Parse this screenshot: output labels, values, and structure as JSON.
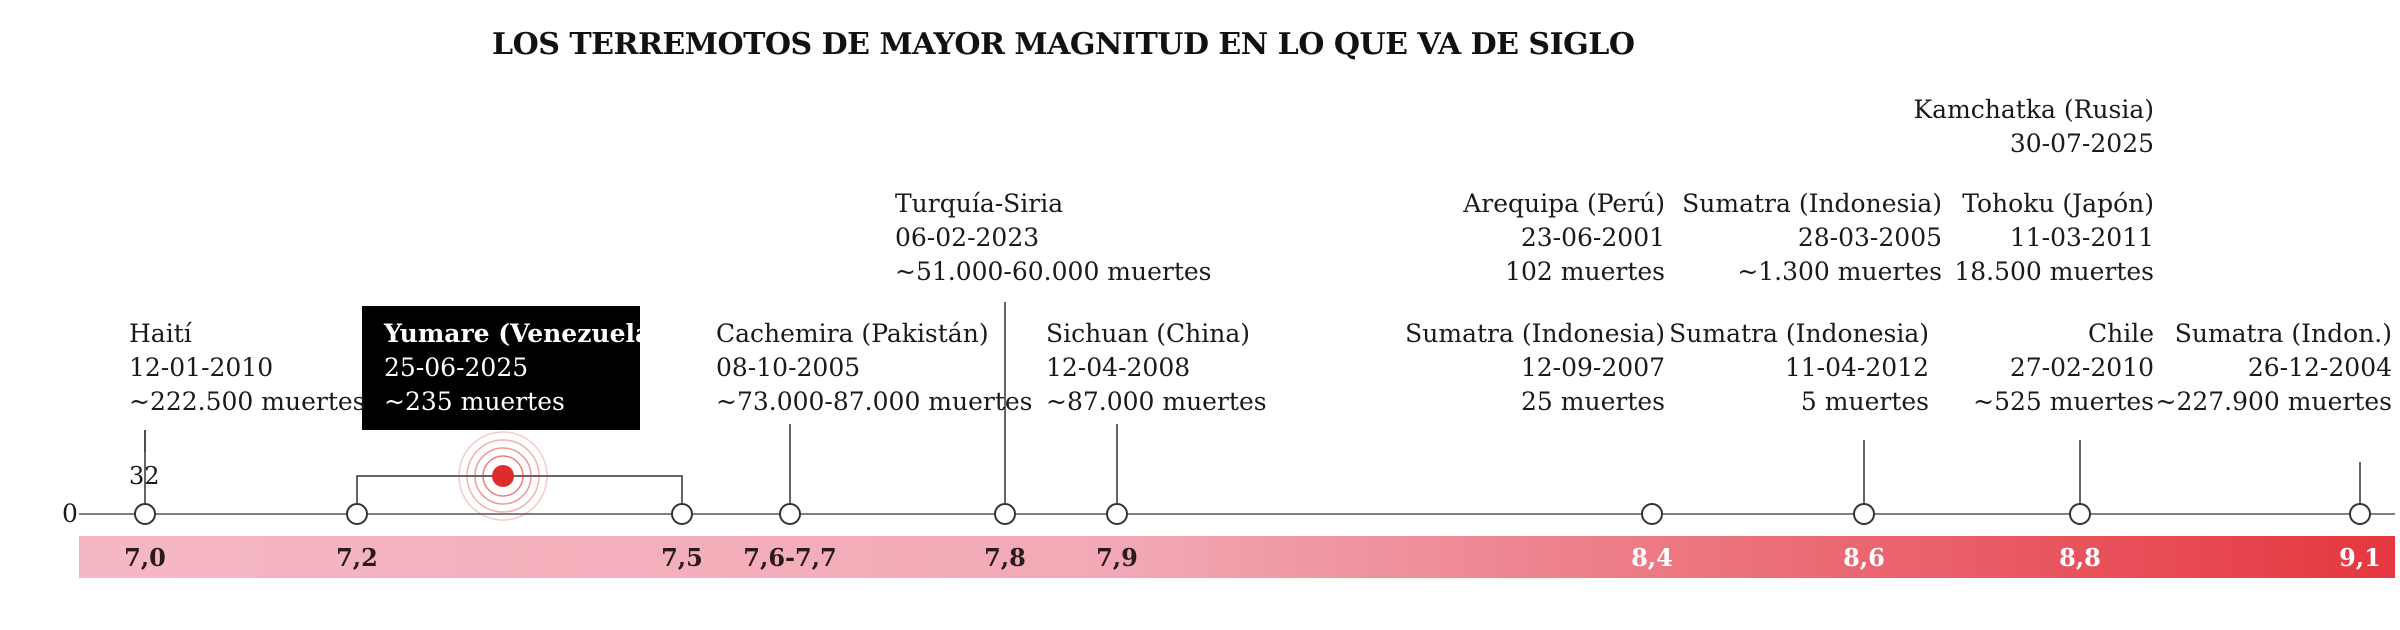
{
  "chart_data": {
    "type": "timeline",
    "title": "LOS TERREMOTOS DE MAYOR MAGNITUD EN LO QUE VA DE SIGLO",
    "y_axis_zero_label": "0",
    "marker_label": "32",
    "scale_colors": {
      "start": "#f5b8c3",
      "end": "#e5373f"
    },
    "highlight_color": "#e02b2b",
    "magnitude_ticks": [
      {
        "label": "7,0",
        "value": 7.0
      },
      {
        "label": "7,2",
        "value": 7.2
      },
      {
        "label": "7,5",
        "value": 7.5
      },
      {
        "label": "7,6-7,7",
        "value": 7.65
      },
      {
        "label": "7,8",
        "value": 7.8
      },
      {
        "label": "7,9",
        "value": 7.9
      },
      {
        "label": "8,4",
        "value": 8.4
      },
      {
        "label": "8,6",
        "value": 8.6
      },
      {
        "label": "8,8",
        "value": 8.8
      },
      {
        "label": "9,1",
        "value": 9.1
      }
    ],
    "highlight": {
      "place": "Yumare (Venezuela)",
      "date": "25-06-2025",
      "deaths": "~235 muertes",
      "magnitude_range": [
        7.2,
        7.5
      ]
    },
    "earthquakes": [
      {
        "place": "Haití",
        "date": "12-01-2010",
        "deaths": "~222.500 muertes",
        "magnitude": 7.0
      },
      {
        "place": "Cachemira (Pakistán)",
        "date": "08-10-2005",
        "deaths": "~73.000-87.000 muertes",
        "magnitude": 7.65
      },
      {
        "place": "Turquía-Siria",
        "date": "06-02-2023",
        "deaths": "~51.000-60.000 muertes",
        "magnitude": 7.8
      },
      {
        "place": "Sichuan (China)",
        "date": "12-04-2008",
        "deaths": "~87.000 muertes",
        "magnitude": 7.9
      },
      {
        "place": "Arequipa (Perú)",
        "date": "23-06-2001",
        "deaths": "102 muertes",
        "magnitude": 8.4
      },
      {
        "place": "Sumatra (Indonesia)",
        "date": "12-09-2007",
        "deaths": "25 muertes",
        "magnitude": 8.4
      },
      {
        "place": "Sumatra (Indonesia)",
        "date": "28-03-2005",
        "deaths": "~1.300 muertes",
        "magnitude": 8.6
      },
      {
        "place": "Sumatra (Indonesia)",
        "date": "11-04-2012",
        "deaths": "5 muertes",
        "magnitude": 8.6
      },
      {
        "place": "Kamchatka (Rusia)",
        "date": "30-07-2025",
        "deaths": "",
        "magnitude": 8.8
      },
      {
        "place": "Tohoku (Japón)",
        "date": "11-03-2011",
        "deaths": "18.500 muertes",
        "magnitude": 8.8
      },
      {
        "place": "Chile",
        "date": "27-02-2010",
        "deaths": "~525 muertes",
        "magnitude": 8.8
      },
      {
        "place": "Sumatra (Indon.)",
        "date": "26-12-2004",
        "deaths": "~227.900 muertes",
        "magnitude": 9.1
      }
    ]
  }
}
